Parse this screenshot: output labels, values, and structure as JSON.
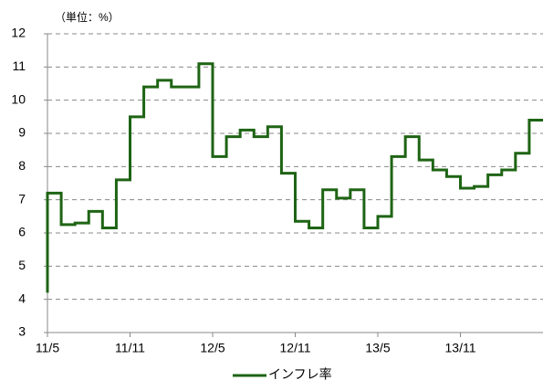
{
  "chart_data": {
    "type": "step-line",
    "unit_label": "（単位：%）",
    "categories": [
      "11/5",
      null,
      null,
      null,
      null,
      null,
      "11/11",
      null,
      null,
      null,
      null,
      null,
      "12/5",
      null,
      null,
      null,
      null,
      null,
      "12/11",
      null,
      null,
      null,
      null,
      null,
      "13/5",
      null,
      null,
      null,
      null,
      null,
      "13/11",
      null,
      null,
      null,
      null,
      null,
      null
    ],
    "series": [
      {
        "name": "インフレ率",
        "color": "#1e6414",
        "values": [
          4.2,
          7.2,
          6.25,
          6.3,
          6.65,
          6.15,
          7.6,
          9.5,
          10.4,
          10.6,
          10.4,
          10.4,
          11.1,
          8.3,
          8.9,
          9.1,
          8.9,
          9.2,
          7.8,
          6.35,
          6.15,
          7.3,
          7.05,
          7.3,
          6.15,
          6.5,
          8.3,
          8.9,
          8.2,
          7.9,
          7.7,
          7.35,
          7.4,
          7.75,
          7.9,
          8.4,
          9.4
        ]
      }
    ],
    "ylim": [
      3,
      12
    ],
    "yticks": [
      3,
      4,
      5,
      6,
      7,
      8,
      9,
      10,
      11,
      12
    ],
    "grid": true,
    "legend": "bottom"
  }
}
